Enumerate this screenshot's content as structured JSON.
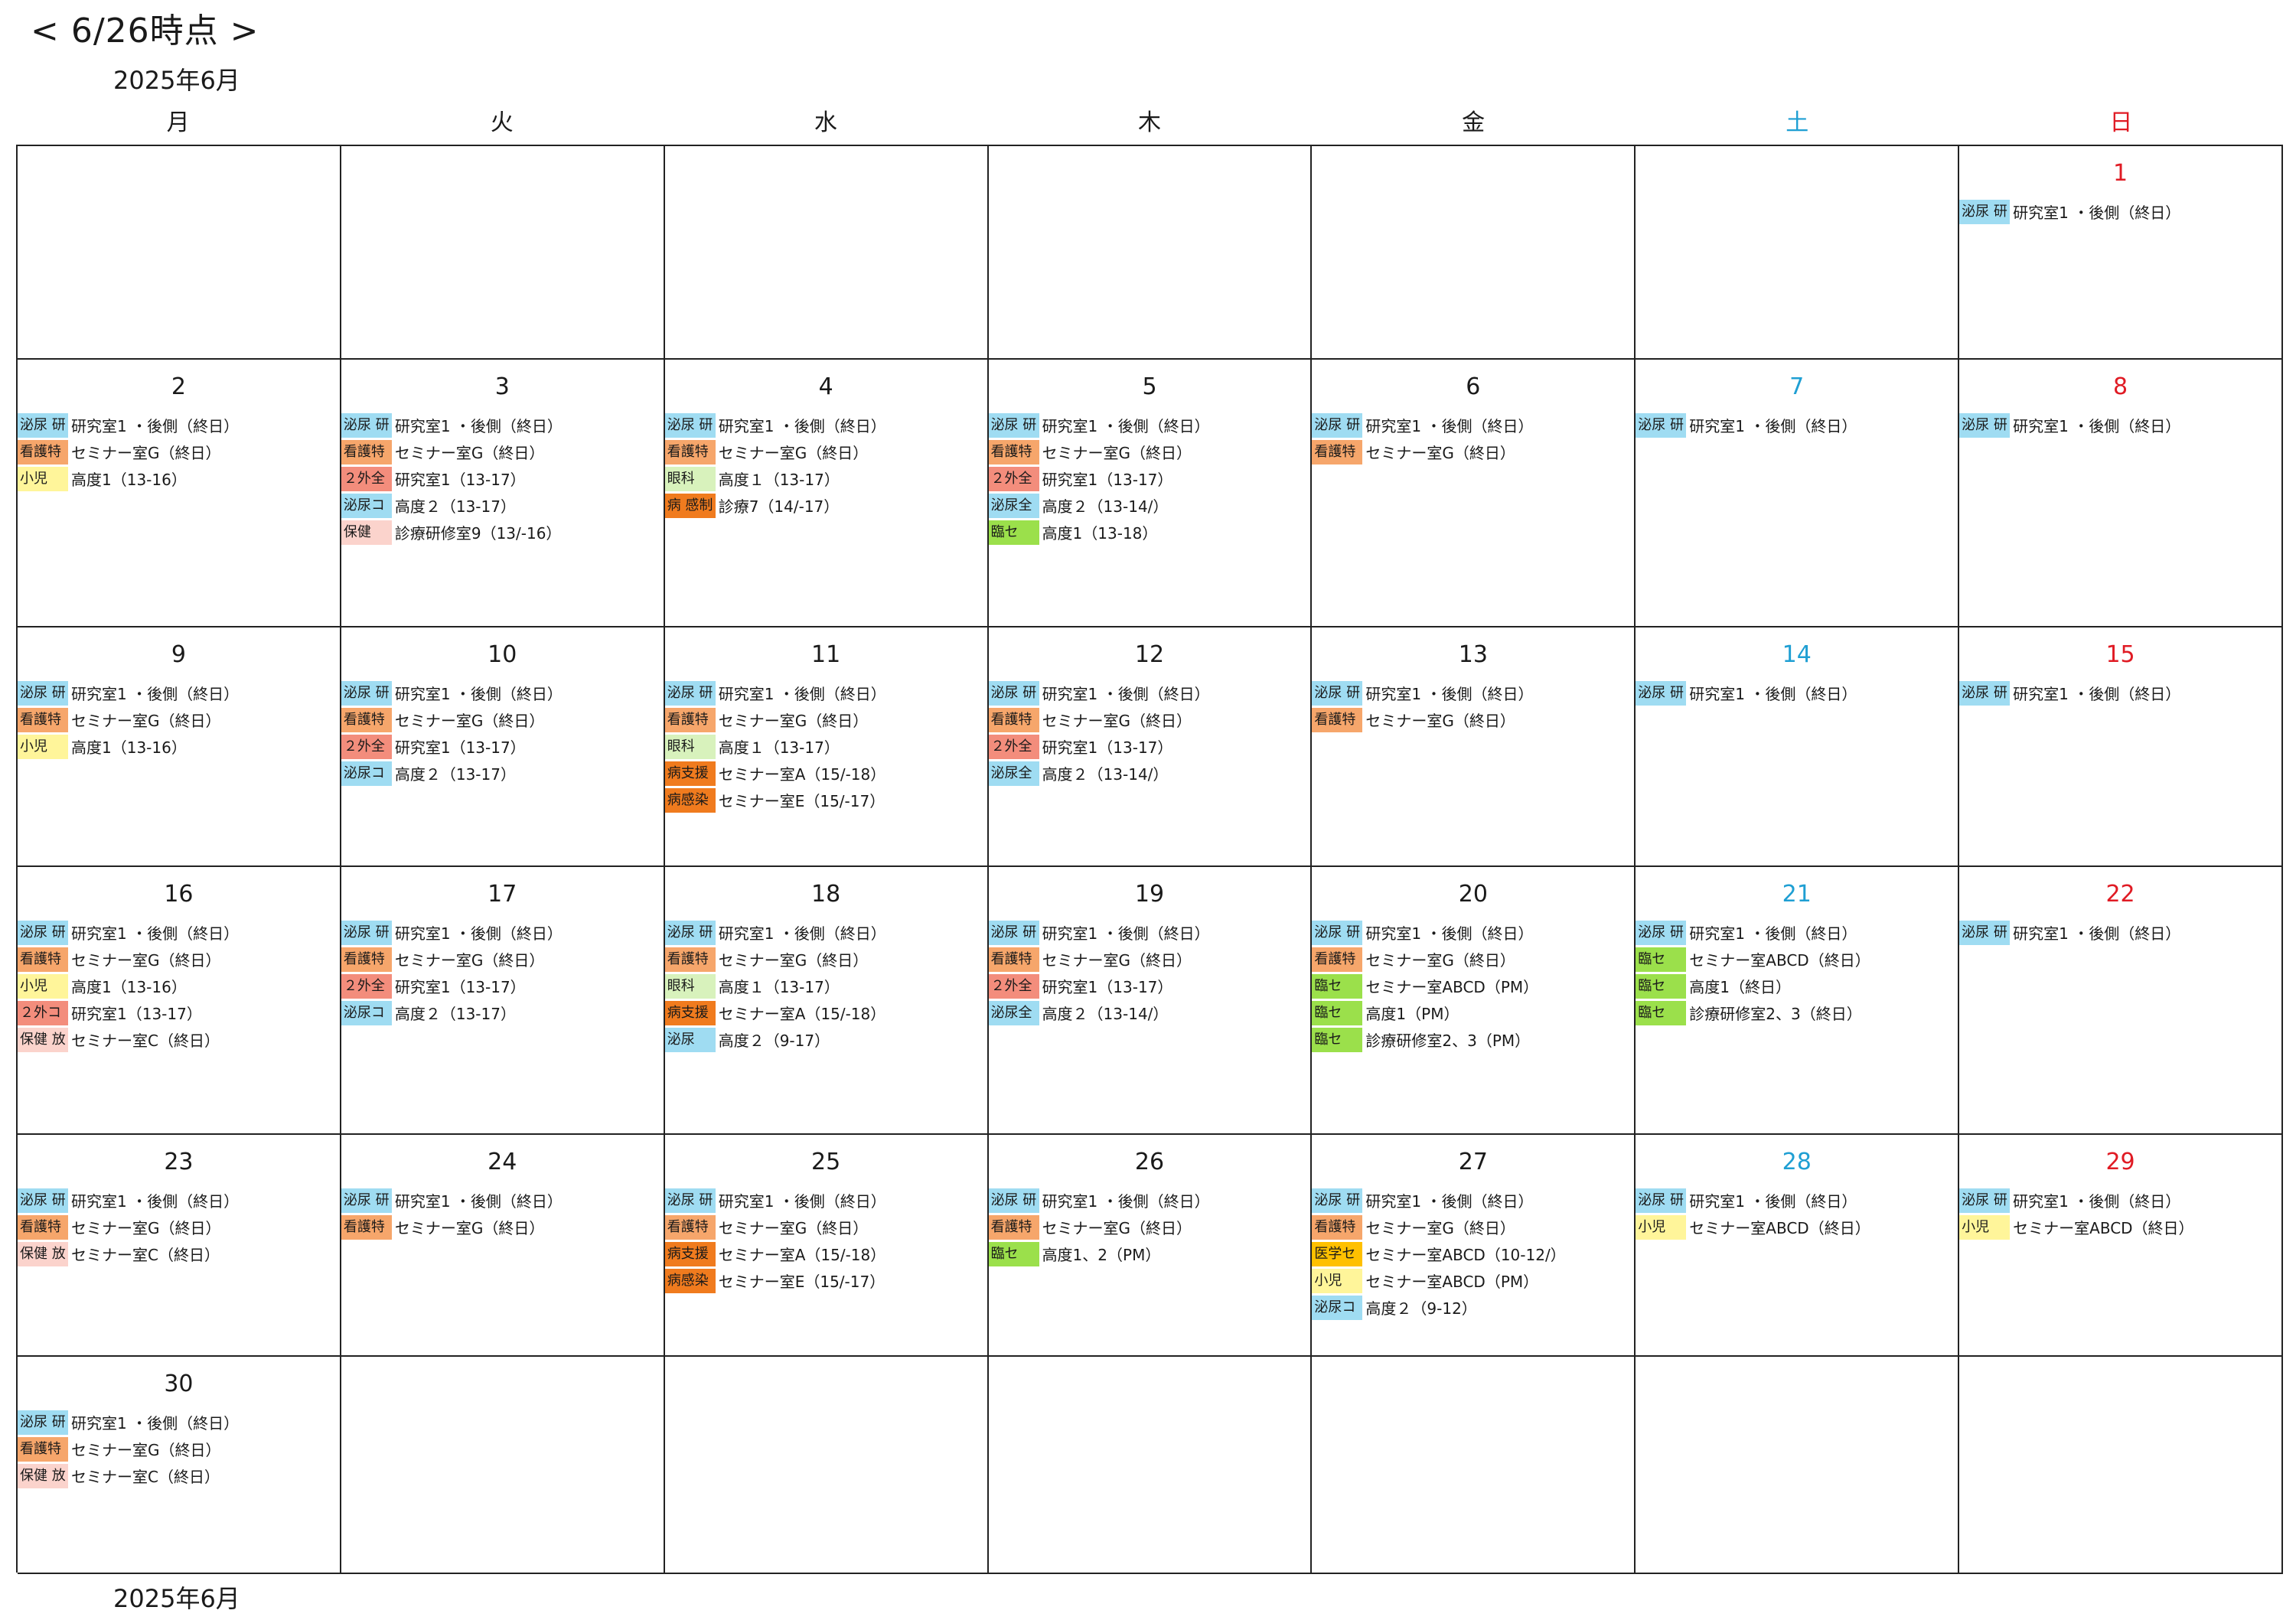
{
  "as_of": "< 6/26時点 >",
  "month_label": "2025年6月",
  "weekdays": [
    "月",
    "火",
    "水",
    "木",
    "金",
    "土",
    "日"
  ],
  "tag_colors": {
    "blue": "#9fdcf2",
    "orange": "#f6a66b",
    "yellow": "#fff59a",
    "pink": "#fbd3cc",
    "red": "#f38d7c",
    "lgreen": "#d8f2bc",
    "dorange": "#f07b1e",
    "green": "#9be04b",
    "gold": "#ffc000"
  },
  "weeks": [
    [
      {
        "day": "",
        "events": []
      },
      {
        "day": "",
        "events": []
      },
      {
        "day": "",
        "events": []
      },
      {
        "day": "",
        "events": []
      },
      {
        "day": "",
        "events": []
      },
      {
        "day": "",
        "events": []
      },
      {
        "day": "1",
        "events": [
          {
            "tag": "泌尿 研",
            "color": "blue",
            "text": "研究室1 ・後側（終日）"
          }
        ]
      }
    ],
    [
      {
        "day": "2",
        "events": [
          {
            "tag": "泌尿 研",
            "color": "blue",
            "text": "研究室1 ・後側（終日）"
          },
          {
            "tag": "看護特",
            "color": "orange",
            "text": "セミナー室G（終日）"
          },
          {
            "tag": "小児",
            "color": "yellow",
            "text": "高度1（13-16）"
          }
        ]
      },
      {
        "day": "3",
        "events": [
          {
            "tag": "泌尿 研",
            "color": "blue",
            "text": "研究室1 ・後側（終日）"
          },
          {
            "tag": "看護特",
            "color": "orange",
            "text": "セミナー室G（終日）"
          },
          {
            "tag": "２外全",
            "color": "red",
            "text": "研究室1（13-17）"
          },
          {
            "tag": "泌尿コ",
            "color": "blue",
            "text": "高度２（13-17）"
          },
          {
            "tag": "保健",
            "color": "pink",
            "text": "診療研修室9（13/-16）"
          }
        ]
      },
      {
        "day": "4",
        "events": [
          {
            "tag": "泌尿 研",
            "color": "blue",
            "text": "研究室1 ・後側（終日）"
          },
          {
            "tag": "看護特",
            "color": "orange",
            "text": "セミナー室G（終日）"
          },
          {
            "tag": "眼科",
            "color": "lgreen",
            "text": "高度１（13-17）"
          },
          {
            "tag": "病 感制",
            "color": "dorange",
            "text": "診療7（14/-17）"
          }
        ]
      },
      {
        "day": "5",
        "events": [
          {
            "tag": "泌尿 研",
            "color": "blue",
            "text": "研究室1 ・後側（終日）"
          },
          {
            "tag": "看護特",
            "color": "orange",
            "text": "セミナー室G（終日）"
          },
          {
            "tag": "２外全",
            "color": "red",
            "text": "研究室1（13-17）"
          },
          {
            "tag": "泌尿全",
            "color": "blue",
            "text": "高度２（13-14/）"
          },
          {
            "tag": "臨セ",
            "color": "green",
            "text": "高度1（13-18）"
          }
        ]
      },
      {
        "day": "6",
        "events": [
          {
            "tag": "泌尿 研",
            "color": "blue",
            "text": "研究室1 ・後側（終日）"
          },
          {
            "tag": "看護特",
            "color": "orange",
            "text": "セミナー室G（終日）"
          }
        ]
      },
      {
        "day": "7",
        "events": [
          {
            "tag": "泌尿 研",
            "color": "blue",
            "text": "研究室1 ・後側（終日）"
          }
        ]
      },
      {
        "day": "8",
        "events": [
          {
            "tag": "泌尿 研",
            "color": "blue",
            "text": "研究室1 ・後側（終日）"
          }
        ]
      }
    ],
    [
      {
        "day": "9",
        "events": [
          {
            "tag": "泌尿 研",
            "color": "blue",
            "text": "研究室1 ・後側（終日）"
          },
          {
            "tag": "看護特",
            "color": "orange",
            "text": "セミナー室G（終日）"
          },
          {
            "tag": "小児",
            "color": "yellow",
            "text": "高度1（13-16）"
          }
        ]
      },
      {
        "day": "10",
        "events": [
          {
            "tag": "泌尿 研",
            "color": "blue",
            "text": "研究室1 ・後側（終日）"
          },
          {
            "tag": "看護特",
            "color": "orange",
            "text": "セミナー室G（終日）"
          },
          {
            "tag": "２外全",
            "color": "red",
            "text": "研究室1（13-17）"
          },
          {
            "tag": "泌尿コ",
            "color": "blue",
            "text": "高度２（13-17）"
          }
        ]
      },
      {
        "day": "11",
        "events": [
          {
            "tag": "泌尿 研",
            "color": "blue",
            "text": "研究室1 ・後側（終日）"
          },
          {
            "tag": "看護特",
            "color": "orange",
            "text": "セミナー室G（終日）"
          },
          {
            "tag": "眼科",
            "color": "lgreen",
            "text": "高度１（13-17）"
          },
          {
            "tag": "病支援",
            "color": "dorange",
            "text": "セミナー室A（15/-18）"
          },
          {
            "tag": "病感染",
            "color": "dorange",
            "text": "セミナー室E（15/-17）"
          }
        ]
      },
      {
        "day": "12",
        "events": [
          {
            "tag": "泌尿 研",
            "color": "blue",
            "text": "研究室1 ・後側（終日）"
          },
          {
            "tag": "看護特",
            "color": "orange",
            "text": "セミナー室G（終日）"
          },
          {
            "tag": "２外全",
            "color": "red",
            "text": "研究室1（13-17）"
          },
          {
            "tag": "泌尿全",
            "color": "blue",
            "text": "高度２（13-14/）"
          }
        ]
      },
      {
        "day": "13",
        "events": [
          {
            "tag": "泌尿 研",
            "color": "blue",
            "text": "研究室1 ・後側（終日）"
          },
          {
            "tag": "看護特",
            "color": "orange",
            "text": "セミナー室G（終日）"
          }
        ]
      },
      {
        "day": "14",
        "events": [
          {
            "tag": "泌尿 研",
            "color": "blue",
            "text": "研究室1 ・後側（終日）"
          }
        ]
      },
      {
        "day": "15",
        "events": [
          {
            "tag": "泌尿 研",
            "color": "blue",
            "text": "研究室1 ・後側（終日）"
          }
        ]
      }
    ],
    [
      {
        "day": "16",
        "events": [
          {
            "tag": "泌尿 研",
            "color": "blue",
            "text": "研究室1 ・後側（終日）"
          },
          {
            "tag": "看護特",
            "color": "orange",
            "text": "セミナー室G（終日）"
          },
          {
            "tag": "小児",
            "color": "yellow",
            "text": "高度1（13-16）"
          },
          {
            "tag": "２外コ",
            "color": "red",
            "text": "研究室1（13-17）"
          },
          {
            "tag": "保健 放",
            "color": "pink",
            "text": "セミナー室C（終日）"
          }
        ]
      },
      {
        "day": "17",
        "events": [
          {
            "tag": "泌尿 研",
            "color": "blue",
            "text": "研究室1 ・後側（終日）"
          },
          {
            "tag": "看護特",
            "color": "orange",
            "text": "セミナー室G（終日）"
          },
          {
            "tag": "２外全",
            "color": "red",
            "text": "研究室1（13-17）"
          },
          {
            "tag": "泌尿コ",
            "color": "blue",
            "text": "高度２（13-17）"
          }
        ]
      },
      {
        "day": "18",
        "events": [
          {
            "tag": "泌尿 研",
            "color": "blue",
            "text": "研究室1 ・後側（終日）"
          },
          {
            "tag": "看護特",
            "color": "orange",
            "text": "セミナー室G（終日）"
          },
          {
            "tag": "眼科",
            "color": "lgreen",
            "text": "高度１（13-17）"
          },
          {
            "tag": "病支援",
            "color": "dorange",
            "text": "セミナー室A（15/-18）"
          },
          {
            "tag": "泌尿",
            "color": "blue",
            "text": "高度２（9-17）"
          }
        ]
      },
      {
        "day": "19",
        "events": [
          {
            "tag": "泌尿 研",
            "color": "blue",
            "text": "研究室1 ・後側（終日）"
          },
          {
            "tag": "看護特",
            "color": "orange",
            "text": "セミナー室G（終日）"
          },
          {
            "tag": "２外全",
            "color": "red",
            "text": "研究室1（13-17）"
          },
          {
            "tag": "泌尿全",
            "color": "blue",
            "text": "高度２（13-14/）"
          }
        ]
      },
      {
        "day": "20",
        "events": [
          {
            "tag": "泌尿 研",
            "color": "blue",
            "text": "研究室1 ・後側（終日）"
          },
          {
            "tag": "看護特",
            "color": "orange",
            "text": "セミナー室G（終日）"
          },
          {
            "tag": "臨セ",
            "color": "green",
            "text": "セミナー室ABCD（PM）"
          },
          {
            "tag": "臨セ",
            "color": "green",
            "text": "高度1（PM）"
          },
          {
            "tag": "臨セ",
            "color": "green",
            "text": "診療研修室2、3（PM）"
          }
        ]
      },
      {
        "day": "21",
        "events": [
          {
            "tag": "泌尿 研",
            "color": "blue",
            "text": "研究室1 ・後側（終日）"
          },
          {
            "tag": "臨セ",
            "color": "green",
            "text": "セミナー室ABCD（終日）"
          },
          {
            "tag": "臨セ",
            "color": "green",
            "text": "高度1（終日）"
          },
          {
            "tag": "臨セ",
            "color": "green",
            "text": "診療研修室2、3（終日）"
          }
        ]
      },
      {
        "day": "22",
        "events": [
          {
            "tag": "泌尿 研",
            "color": "blue",
            "text": "研究室1 ・後側（終日）"
          }
        ]
      }
    ],
    [
      {
        "day": "23",
        "events": [
          {
            "tag": "泌尿 研",
            "color": "blue",
            "text": "研究室1 ・後側（終日）"
          },
          {
            "tag": "看護特",
            "color": "orange",
            "text": "セミナー室G（終日）"
          },
          {
            "tag": "保健 放",
            "color": "pink",
            "text": "セミナー室C（終日）"
          }
        ]
      },
      {
        "day": "24",
        "events": [
          {
            "tag": "泌尿 研",
            "color": "blue",
            "text": "研究室1 ・後側（終日）"
          },
          {
            "tag": "看護特",
            "color": "orange",
            "text": "セミナー室G（終日）"
          }
        ]
      },
      {
        "day": "25",
        "events": [
          {
            "tag": "泌尿 研",
            "color": "blue",
            "text": "研究室1 ・後側（終日）"
          },
          {
            "tag": "看護特",
            "color": "orange",
            "text": "セミナー室G（終日）"
          },
          {
            "tag": "病支援",
            "color": "dorange",
            "text": "セミナー室A（15/-18）"
          },
          {
            "tag": "病感染",
            "color": "dorange",
            "text": "セミナー室E（15/-17）"
          }
        ]
      },
      {
        "day": "26",
        "events": [
          {
            "tag": "泌尿 研",
            "color": "blue",
            "text": "研究室1 ・後側（終日）"
          },
          {
            "tag": "看護特",
            "color": "orange",
            "text": "セミナー室G（終日）"
          },
          {
            "tag": "臨セ",
            "color": "green",
            "text": "高度1、2（PM）"
          }
        ]
      },
      {
        "day": "27",
        "events": [
          {
            "tag": "泌尿 研",
            "color": "blue",
            "text": "研究室1 ・後側（終日）"
          },
          {
            "tag": "看護特",
            "color": "orange",
            "text": "セミナー室G（終日）"
          },
          {
            "tag": "医学セ",
            "color": "gold",
            "text": "セミナー室ABCD（10-12/）"
          },
          {
            "tag": "小児",
            "color": "yellow",
            "text": "セミナー室ABCD（PM）"
          },
          {
            "tag": "泌尿コ",
            "color": "blue",
            "text": "高度２（9-12）"
          }
        ]
      },
      {
        "day": "28",
        "events": [
          {
            "tag": "泌尿 研",
            "color": "blue",
            "text": "研究室1 ・後側（終日）"
          },
          {
            "tag": "小児",
            "color": "yellow",
            "text": "セミナー室ABCD（終日）"
          }
        ]
      },
      {
        "day": "29",
        "events": [
          {
            "tag": "泌尿 研",
            "color": "blue",
            "text": "研究室1 ・後側（終日）"
          },
          {
            "tag": "小児",
            "color": "yellow",
            "text": "セミナー室ABCD（終日）"
          }
        ]
      }
    ],
    [
      {
        "day": "30",
        "events": [
          {
            "tag": "泌尿 研",
            "color": "blue",
            "text": "研究室1 ・後側（終日）"
          },
          {
            "tag": "看護特",
            "color": "orange",
            "text": "セミナー室G（終日）"
          },
          {
            "tag": "保健 放",
            "color": "pink",
            "text": "セミナー室C（終日）"
          }
        ]
      },
      {
        "day": "",
        "events": []
      },
      {
        "day": "",
        "events": []
      },
      {
        "day": "",
        "events": []
      },
      {
        "day": "",
        "events": []
      },
      {
        "day": "",
        "events": []
      },
      {
        "day": "",
        "events": []
      }
    ]
  ]
}
